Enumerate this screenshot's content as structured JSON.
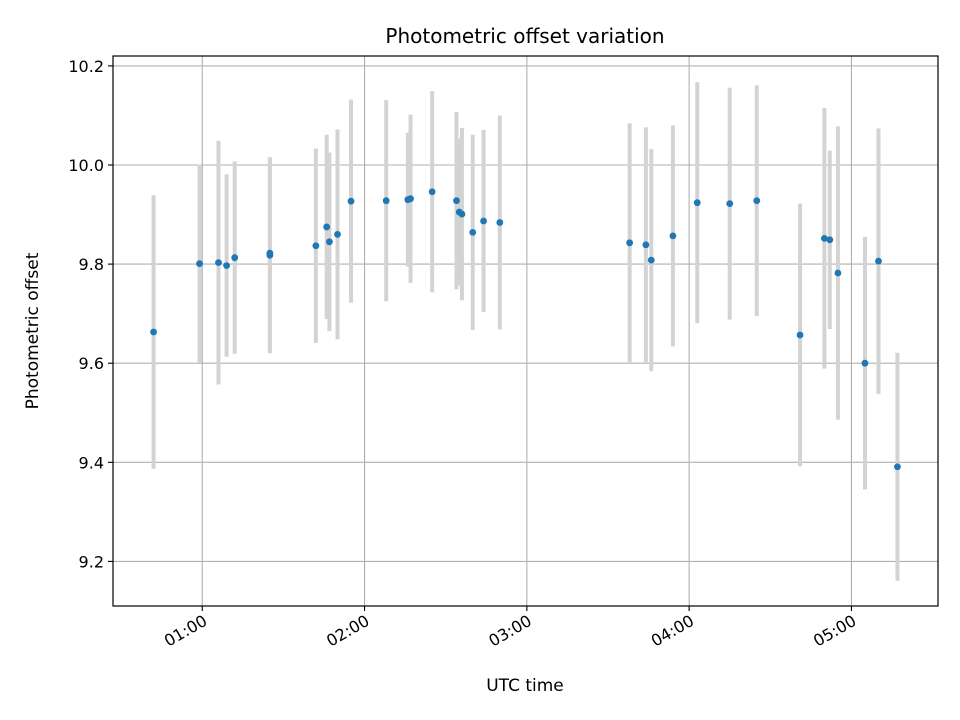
{
  "chart_data": {
    "type": "scatter",
    "title": "Photometric offset variation",
    "xlabel": "UTC time",
    "ylabel": "Photometric offset",
    "x_axis_type": "time",
    "xlim": [
      "00:27",
      "05:32"
    ],
    "ylim": [
      9.11,
      10.22
    ],
    "grid": true,
    "x_ticks": [
      "01:00",
      "02:00",
      "03:00",
      "04:00",
      "05:00"
    ],
    "y_ticks": [
      "9.2",
      "9.4",
      "9.6",
      "9.8",
      "10.0",
      "10.2"
    ],
    "colors": {
      "points": "#1f77b4",
      "error_bars": "#d3d3d3",
      "grid": "#b0b0b0"
    },
    "series": [
      {
        "points": [
          {
            "x": "00:42",
            "y": 9.663,
            "yerr": 0.276
          },
          {
            "x": "00:59",
            "y": 9.801,
            "yerr": 0.2
          },
          {
            "x": "01:06",
            "y": 9.803,
            "yerr": 0.246
          },
          {
            "x": "01:09",
            "y": 9.797,
            "yerr": 0.184
          },
          {
            "x": "01:12",
            "y": 9.813,
            "yerr": 0.194
          },
          {
            "x": "01:25",
            "y": 9.818,
            "yerr": 0.198
          },
          {
            "x": "01:25",
            "y": 9.822,
            "yerr": 0.192
          },
          {
            "x": "01:42",
            "y": 9.837,
            "yerr": 0.196
          },
          {
            "x": "01:46",
            "y": 9.875,
            "yerr": 0.186
          },
          {
            "x": "01:47",
            "y": 9.845,
            "yerr": 0.18
          },
          {
            "x": "01:50",
            "y": 9.86,
            "yerr": 0.212
          },
          {
            "x": "01:55",
            "y": 9.927,
            "yerr": 0.205
          },
          {
            "x": "02:08",
            "y": 9.928,
            "yerr": 0.203
          },
          {
            "x": "02:16",
            "y": 9.93,
            "yerr": 0.135
          },
          {
            "x": "02:17",
            "y": 9.932,
            "yerr": 0.17
          },
          {
            "x": "02:25",
            "y": 9.946,
            "yerr": 0.203
          },
          {
            "x": "02:34",
            "y": 9.928,
            "yerr": 0.179
          },
          {
            "x": "02:35",
            "y": 9.905,
            "yerr": 0.148
          },
          {
            "x": "02:36",
            "y": 9.901,
            "yerr": 0.174
          },
          {
            "x": "02:40",
            "y": 9.864,
            "yerr": 0.197
          },
          {
            "x": "02:44",
            "y": 9.887,
            "yerr": 0.184
          },
          {
            "x": "02:50",
            "y": 9.884,
            "yerr": 0.216
          },
          {
            "x": "03:38",
            "y": 9.843,
            "yerr": 0.241
          },
          {
            "x": "03:44",
            "y": 9.839,
            "yerr": 0.237
          },
          {
            "x": "03:46",
            "y": 9.808,
            "yerr": 0.224
          },
          {
            "x": "03:54",
            "y": 9.857,
            "yerr": 0.223
          },
          {
            "x": "04:03",
            "y": 9.924,
            "yerr": 0.243
          },
          {
            "x": "04:15",
            "y": 9.922,
            "yerr": 0.234
          },
          {
            "x": "04:25",
            "y": 9.928,
            "yerr": 0.233
          },
          {
            "x": "04:41",
            "y": 9.657,
            "yerr": 0.265
          },
          {
            "x": "04:50",
            "y": 9.852,
            "yerr": 0.263
          },
          {
            "x": "04:52",
            "y": 9.849,
            "yerr": 0.18
          },
          {
            "x": "04:55",
            "y": 9.782,
            "yerr": 0.296
          },
          {
            "x": "05:05",
            "y": 9.6,
            "yerr": 0.255
          },
          {
            "x": "05:10",
            "y": 9.806,
            "yerr": 0.268
          },
          {
            "x": "05:17",
            "y": 9.391,
            "yerr": 0.23
          }
        ]
      }
    ]
  }
}
